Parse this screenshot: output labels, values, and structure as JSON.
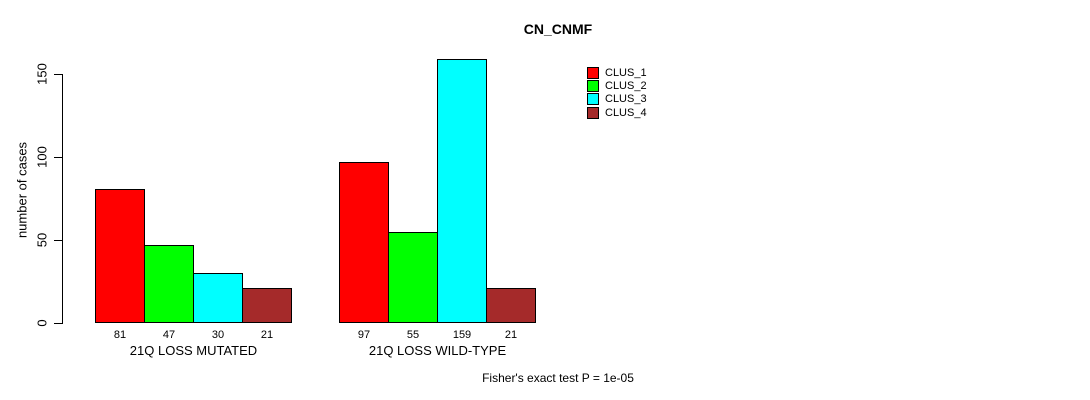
{
  "chart_data": {
    "type": "bar",
    "title": "CN_CNMF",
    "ylabel": "number of cases",
    "xlabel": "",
    "yticks": [
      0,
      50,
      100,
      150
    ],
    "ylim": [
      0,
      160
    ],
    "grid": false,
    "legend_position": "right-of-plot-top",
    "categories": [
      "21Q LOSS MUTATED",
      "21Q LOSS WILD-TYPE"
    ],
    "series": [
      {
        "name": "CLUS_1",
        "color": "#ff0000",
        "values": [
          81,
          97
        ]
      },
      {
        "name": "CLUS_2",
        "color": "#00ff00",
        "values": [
          47,
          55
        ]
      },
      {
        "name": "CLUS_3",
        "color": "#00ffff",
        "values": [
          30,
          159
        ]
      },
      {
        "name": "CLUS_4",
        "color": "#a52a2a",
        "values": [
          21,
          21
        ]
      }
    ],
    "bar_value_labels": true,
    "annotation": "Fisher's exact test P = 1e-05"
  }
}
